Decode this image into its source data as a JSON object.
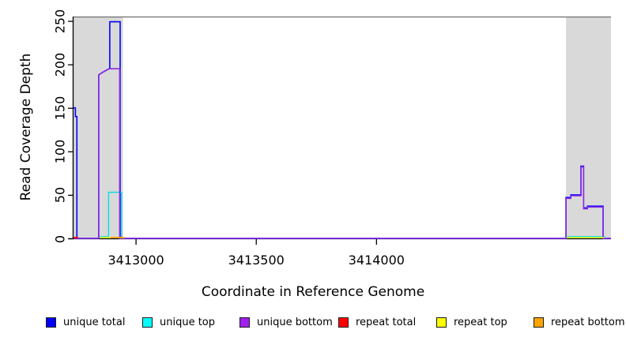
{
  "chart_data": {
    "type": "line",
    "title": "",
    "xlabel": "Coordinate in Reference Genome",
    "ylabel": "Read Coverage Depth",
    "xlim": [
      3412740,
      3414975
    ],
    "ylim": [
      0,
      255
    ],
    "x_ticks": [
      3413000,
      3413500,
      3414000
    ],
    "y_ticks": [
      0,
      50,
      100,
      150,
      200,
      250
    ],
    "grid": false,
    "legend_position": "bottom",
    "frame_color": "#6e6e6e",
    "axis_color": "#000000",
    "highlight_regions": [
      {
        "name": "left-gray-band",
        "x0": 3412740,
        "x1": 3412946,
        "color": "#d9d9d9"
      },
      {
        "name": "right-gray-band",
        "x0": 3414788,
        "x1": 3414975,
        "color": "#d9d9d9"
      }
    ],
    "series": [
      {
        "name": "unique total",
        "color": "#0000ff",
        "stroke_width": 1.6,
        "segments": [
          [
            [
              3412740,
              150
            ],
            [
              3412748,
              150
            ],
            [
              3412748,
              140
            ],
            [
              3412754,
              140
            ],
            [
              3412754,
              0
            ],
            [
              3412845,
              0
            ],
            [
              3412845,
              188
            ],
            [
              3412862,
              191
            ],
            [
              3412888,
              195
            ],
            [
              3412891,
              195
            ],
            [
              3412891,
              249
            ],
            [
              3412934,
              249
            ],
            [
              3412934,
              0
            ],
            [
              3414788,
              0
            ],
            [
              3414788,
              47
            ],
            [
              3414808,
              47
            ],
            [
              3414808,
              50
            ],
            [
              3414850,
              50
            ],
            [
              3414850,
              83
            ],
            [
              3414861,
              83
            ],
            [
              3414861,
              35
            ],
            [
              3414877,
              35
            ],
            [
              3414877,
              37
            ],
            [
              3414942,
              37
            ],
            [
              3414942,
              0
            ],
            [
              3414975,
              0
            ]
          ]
        ]
      },
      {
        "name": "unique top",
        "color": "#00e0e0",
        "stroke_width": 1.4,
        "segments": [
          [
            [
              3412850,
              2
            ],
            [
              3412886,
              2
            ],
            [
              3412886,
              53
            ],
            [
              3412940,
              53
            ],
            [
              3412940,
              0
            ],
            [
              3412950,
              0
            ]
          ],
          [
            [
              3414788,
              2
            ],
            [
              3414947,
              2
            ],
            [
              3414947,
              0
            ]
          ]
        ]
      },
      {
        "name": "unique bottom",
        "color": "#8a2be2",
        "stroke_width": 1.6,
        "segments": [
          [
            [
              3412740,
              0
            ],
            [
              3412845,
              0
            ],
            [
              3412845,
              188
            ],
            [
              3412862,
              191
            ],
            [
              3412888,
              195
            ],
            [
              3412932,
              195
            ],
            [
              3412932,
              0
            ],
            [
              3414788,
              0
            ],
            [
              3414788,
              46
            ],
            [
              3414808,
              46
            ],
            [
              3414808,
              49
            ],
            [
              3414850,
              49
            ],
            [
              3414850,
              82
            ],
            [
              3414861,
              82
            ],
            [
              3414861,
              34
            ],
            [
              3414877,
              34
            ],
            [
              3414877,
              36
            ],
            [
              3414942,
              36
            ],
            [
              3414942,
              0
            ],
            [
              3414975,
              0
            ]
          ]
        ]
      },
      {
        "name": "repeat total",
        "color": "#ff0000",
        "stroke_width": 1.6,
        "segments": [
          [
            [
              3412740,
              1
            ],
            [
              3412756,
              1
            ],
            [
              3412756,
              0
            ]
          ]
        ]
      },
      {
        "name": "repeat top",
        "color": "#ffff00",
        "stroke_width": 1.4,
        "segments": [
          [
            [
              3412850,
              1
            ],
            [
              3412893,
              1
            ]
          ],
          [
            [
              3414790,
              1
            ],
            [
              3414947,
              1
            ]
          ]
        ]
      },
      {
        "name": "repeat bottom",
        "color": "#ffa500",
        "stroke_width": 1.8,
        "segments": [
          [
            [
              3412893,
              1
            ],
            [
              3412950,
              1
            ],
            [
              3412950,
              0
            ]
          ]
        ]
      }
    ]
  },
  "labels": {
    "xlabel": "Coordinate in Reference Genome",
    "ylabel": "Read Coverage Depth"
  },
  "legend": {
    "items": [
      {
        "label": "unique total",
        "color": "#0000ff"
      },
      {
        "label": "unique top",
        "color": "#00ffff"
      },
      {
        "label": "unique bottom",
        "color": "#a020f0"
      },
      {
        "label": "repeat total",
        "color": "#ff0000"
      },
      {
        "label": "repeat top",
        "color": "#ffff00"
      },
      {
        "label": "repeat bottom",
        "color": "#ffa500"
      }
    ]
  }
}
